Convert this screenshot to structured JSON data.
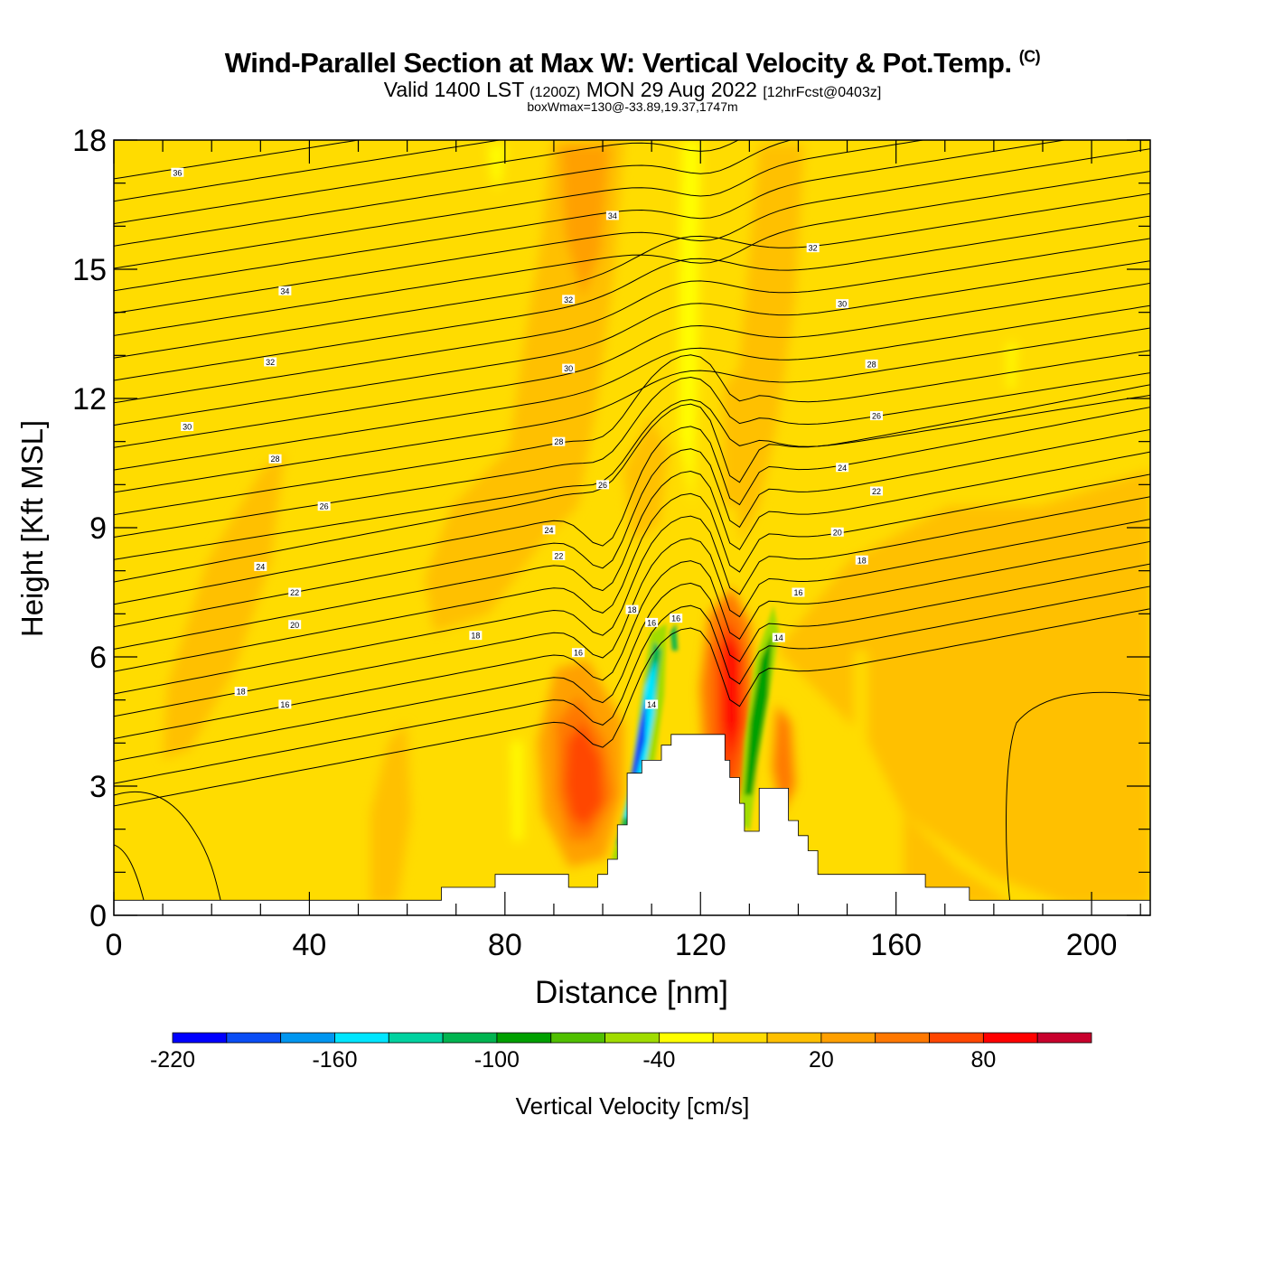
{
  "title": {
    "main": "Wind-Parallel Section at Max W: Vertical Velocity & Pot.Temp.",
    "copyright": "(C)",
    "valid_prefix": "Valid 1400 LST",
    "valid_utc": "(1200Z)",
    "valid_date": "MON 29 Aug 2022",
    "forecast": "[12hrFcst@0403z]",
    "box": "boxWmax=130@-33.89,19.37,1747m"
  },
  "chart_data": {
    "type": "heatmap",
    "xlabel": "Distance [nm]",
    "ylabel": "Height [Kft MSL]",
    "xlim": [
      0,
      212
    ],
    "ylim": [
      0,
      18
    ],
    "xticks": [
      0,
      40,
      80,
      120,
      160,
      200
    ],
    "yticks": [
      0,
      3,
      6,
      9,
      12,
      15,
      18
    ],
    "x_tick_labels": [
      "0",
      "40",
      "80",
      "120",
      "160",
      "200"
    ],
    "y_tick_labels": [
      "0",
      "3",
      "6",
      "9",
      "12",
      "15",
      "18"
    ],
    "terrain": {
      "x": [
        0,
        67,
        67,
        78,
        78,
        93,
        93,
        99,
        99,
        101,
        101,
        103,
        103,
        105,
        105,
        108,
        108,
        112,
        112,
        114,
        114,
        125,
        125,
        126,
        126,
        128,
        128,
        129,
        129,
        132,
        132,
        138,
        138,
        140,
        140,
        142,
        142,
        144,
        144,
        166,
        166,
        175,
        175,
        212
      ],
      "h": [
        0.35,
        0.35,
        0.65,
        0.65,
        0.95,
        0.95,
        0.65,
        0.65,
        0.95,
        0.95,
        1.3,
        1.3,
        2.1,
        2.1,
        3.3,
        3.3,
        3.6,
        3.6,
        3.95,
        3.95,
        4.2,
        4.2,
        3.6,
        3.6,
        3.2,
        3.2,
        2.6,
        2.6,
        1.95,
        1.95,
        2.95,
        2.95,
        2.2,
        2.2,
        1.85,
        1.85,
        1.5,
        1.5,
        0.95,
        0.95,
        0.65,
        0.65,
        0.35,
        0.35
      ]
    },
    "contour_labels": [
      {
        "x": 13,
        "y": 17.25,
        "text": "36"
      },
      {
        "x": 102,
        "y": 16.25,
        "text": "34"
      },
      {
        "x": 143,
        "y": 15.5,
        "text": "32"
      },
      {
        "x": 35,
        "y": 14.5,
        "text": "34"
      },
      {
        "x": 93,
        "y": 14.3,
        "text": "32"
      },
      {
        "x": 149,
        "y": 14.2,
        "text": "30"
      },
      {
        "x": 32,
        "y": 12.85,
        "text": "32"
      },
      {
        "x": 93,
        "y": 12.7,
        "text": "30"
      },
      {
        "x": 155,
        "y": 12.8,
        "text": "28"
      },
      {
        "x": 15,
        "y": 11.35,
        "text": "30"
      },
      {
        "x": 91,
        "y": 11.0,
        "text": "28"
      },
      {
        "x": 156,
        "y": 11.6,
        "text": "26"
      },
      {
        "x": 33,
        "y": 10.6,
        "text": "28"
      },
      {
        "x": 100,
        "y": 10.0,
        "text": "26"
      },
      {
        "x": 149,
        "y": 10.4,
        "text": "24"
      },
      {
        "x": 43,
        "y": 9.5,
        "text": "26"
      },
      {
        "x": 156,
        "y": 9.85,
        "text": "22"
      },
      {
        "x": 89,
        "y": 8.95,
        "text": "24"
      },
      {
        "x": 148,
        "y": 8.9,
        "text": "20"
      },
      {
        "x": 30,
        "y": 8.1,
        "text": "24"
      },
      {
        "x": 91,
        "y": 8.35,
        "text": "22"
      },
      {
        "x": 153,
        "y": 8.25,
        "text": "18"
      },
      {
        "x": 37,
        "y": 7.5,
        "text": "22"
      },
      {
        "x": 140,
        "y": 7.5,
        "text": "16"
      },
      {
        "x": 37,
        "y": 6.75,
        "text": "20"
      },
      {
        "x": 74,
        "y": 6.5,
        "text": "18"
      },
      {
        "x": 106,
        "y": 7.1,
        "text": "18"
      },
      {
        "x": 110,
        "y": 6.8,
        "text": "16"
      },
      {
        "x": 115,
        "y": 6.9,
        "text": "16"
      },
      {
        "x": 95,
        "y": 6.1,
        "text": "16"
      },
      {
        "x": 136,
        "y": 6.45,
        "text": "14"
      },
      {
        "x": 26,
        "y": 5.2,
        "text": "18"
      },
      {
        "x": 35,
        "y": 4.9,
        "text": "16"
      },
      {
        "x": 110,
        "y": 4.9,
        "text": "14"
      }
    ],
    "colorbar": {
      "label": "Vertical Velocity [cm/s]",
      "range": [
        -220,
        120
      ],
      "step": 20,
      "tick_labels": [
        "-220",
        "-160",
        "-100",
        "-40",
        "20",
        "80"
      ],
      "colors": [
        "#0000ff",
        "#0a4df5",
        "#0096f0",
        "#00e6ff",
        "#00d2a0",
        "#00b450",
        "#00a000",
        "#50c000",
        "#a0dc00",
        "#ffff00",
        "#ffdc00",
        "#ffc000",
        "#ffa000",
        "#ff7800",
        "#ff4600",
        "#ff0000",
        "#c8002d"
      ]
    }
  }
}
